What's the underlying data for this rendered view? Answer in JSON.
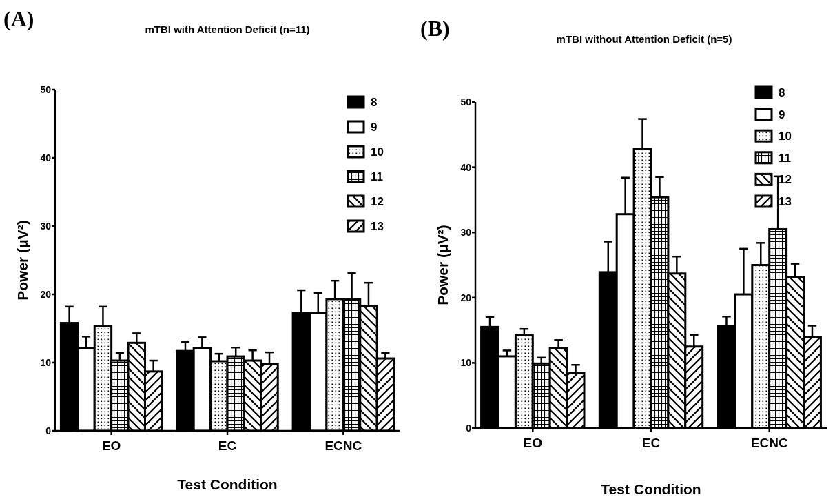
{
  "chart_data": [
    {
      "type": "bar",
      "title": "mTBI with Attention Deficit (n=11)",
      "xlabel": "Test Condition",
      "ylabel": "Power (μV²)",
      "annotations": [
        "(A)"
      ],
      "categories": [
        "EO",
        "EC",
        "ECNC"
      ],
      "ylim": [
        0,
        50
      ],
      "yticks": [
        0,
        10,
        20,
        30,
        40,
        50
      ],
      "legend": "top right",
      "grid": false,
      "series": [
        {
          "name": "8",
          "color": "#000000",
          "values": [
            15.8,
            11.7,
            17.3
          ],
          "errors": [
            [
              15.8,
              18.2
            ],
            [
              11.7,
              13.0
            ],
            [
              17.3,
              20.6
            ]
          ]
        },
        {
          "name": "9",
          "color": "#ffffff",
          "values": [
            12.1,
            12.1,
            17.3
          ],
          "errors": [
            [
              12.1,
              13.8
            ],
            [
              12.1,
              13.7
            ],
            [
              17.3,
              20.2
            ]
          ]
        },
        {
          "name": "10",
          "color": "#000000",
          "values": [
            15.3,
            10.2,
            19.3
          ],
          "errors": [
            [
              15.3,
              18.2
            ],
            [
              10.2,
              11.3
            ],
            [
              19.3,
              22.0
            ]
          ]
        },
        {
          "name": "11",
          "color": "#000000",
          "values": [
            10.3,
            10.9,
            19.3
          ],
          "errors": [
            [
              10.3,
              11.4
            ],
            [
              10.9,
              12.2
            ],
            [
              19.3,
              23.1
            ]
          ]
        },
        {
          "name": "12",
          "color": "#000000",
          "values": [
            12.9,
            10.3,
            18.3
          ],
          "errors": [
            [
              12.9,
              14.3
            ],
            [
              10.3,
              11.8
            ],
            [
              18.3,
              21.7
            ]
          ]
        },
        {
          "name": "13",
          "color": "#000000",
          "values": [
            8.7,
            9.8,
            10.6
          ],
          "errors": [
            [
              8.7,
              10.3
            ],
            [
              9.8,
              11.5
            ],
            [
              10.6,
              11.4
            ]
          ]
        }
      ]
    },
    {
      "type": "bar",
      "title": "mTBI without Attention Deficit (n=5)",
      "xlabel": "Test Condition",
      "ylabel": "Power (μV²)",
      "annotations": [
        "(B)"
      ],
      "categories": [
        "EO",
        "EC",
        "ECNC"
      ],
      "ylim": [
        0,
        50
      ],
      "yticks": [
        0,
        10,
        20,
        30,
        40,
        50
      ],
      "legend": "top right",
      "grid": false,
      "series": [
        {
          "name": "8",
          "color": "#000000",
          "values": [
            15.5,
            23.9,
            15.6
          ],
          "errors": [
            [
              15.5,
              17.0
            ],
            [
              23.9,
              28.6
            ],
            [
              15.6,
              17.1
            ]
          ]
        },
        {
          "name": "9",
          "color": "#ffffff",
          "values": [
            11.0,
            32.8,
            20.5
          ],
          "errors": [
            [
              11.0,
              11.9
            ],
            [
              32.8,
              38.4
            ],
            [
              20.5,
              27.5
            ]
          ]
        },
        {
          "name": "10",
          "color": "#000000",
          "values": [
            14.3,
            42.8,
            25.0
          ],
          "errors": [
            [
              14.3,
              15.2
            ],
            [
              42.8,
              47.4
            ],
            [
              25.0,
              28.4
            ]
          ]
        },
        {
          "name": "11",
          "color": "#000000",
          "values": [
            9.9,
            35.4,
            30.5
          ],
          "errors": [
            [
              9.9,
              10.8
            ],
            [
              35.4,
              38.5
            ],
            [
              30.5,
              38.6
            ]
          ]
        },
        {
          "name": "12",
          "color": "#000000",
          "values": [
            12.3,
            23.7,
            23.1
          ],
          "errors": [
            [
              12.3,
              13.5
            ],
            [
              23.7,
              26.3
            ],
            [
              23.1,
              25.2
            ]
          ]
        },
        {
          "name": "13",
          "color": "#000000",
          "values": [
            8.4,
            12.5,
            13.9
          ],
          "errors": [
            [
              8.4,
              9.7
            ],
            [
              12.5,
              14.3
            ],
            [
              13.9,
              15.7
            ]
          ]
        }
      ]
    }
  ]
}
